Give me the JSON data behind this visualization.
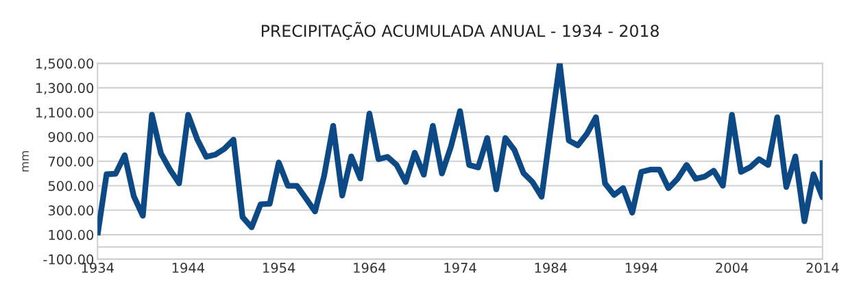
{
  "chart_data": {
    "type": "line",
    "title": "PRECIPITAÇÃO ACUMULADA ANUAL - 1934 - 2018",
    "ylabel": "mm",
    "x": [
      1934,
      1935,
      1936,
      1937,
      1938,
      1939,
      1940,
      1941,
      1942,
      1943,
      1944,
      1945,
      1946,
      1947,
      1948,
      1949,
      1950,
      1951,
      1952,
      1953,
      1954,
      1955,
      1956,
      1957,
      1958,
      1959,
      1960,
      1961,
      1962,
      1963,
      1964,
      1965,
      1966,
      1967,
      1968,
      1969,
      1970,
      1971,
      1972,
      1973,
      1974,
      1975,
      1976,
      1977,
      1978,
      1979,
      1980,
      1981,
      1982,
      1983,
      1984,
      1985,
      1986,
      1987,
      1988,
      1989,
      1990,
      1991,
      1992,
      1993,
      1994,
      1995,
      1996,
      1997,
      1998,
      1999,
      2000,
      2001,
      2002,
      2003,
      2004,
      2005,
      2006,
      2007,
      2008,
      2009,
      2010,
      2011,
      2012,
      2013,
      2014,
      2014
    ],
    "series": [
      {
        "color": "#0d4a85",
        "values": [
          95,
          594,
          598,
          750,
          415,
          255,
          1080,
          764,
          632,
          520,
          1080,
          880,
          736,
          755,
          802,
          877,
          245,
          160,
          349,
          353,
          690,
          500,
          500,
          396,
          290,
          580,
          990,
          420,
          740,
          560,
          1090,
          717,
          736,
          670,
          530,
          770,
          590,
          990,
          600,
          821,
          1110,
          670,
          650,
          890,
          470,
          890,
          792,
          604,
          530,
          410,
          960,
          1500,
          870,
          830,
          925,
          1060,
          519,
          425,
          481,
          280,
          613,
          632,
          632,
          480,
          557,
          670,
          557,
          575,
          623,
          500,
          1080,
          613,
          651,
          717,
          670,
          1060,
          490,
          740,
          210,
          594,
          406,
          708
        ]
      }
    ],
    "xlim": [
      1934,
      2014
    ],
    "xticks": [
      1934,
      1944,
      1954,
      1964,
      1974,
      1984,
      1994,
      2004,
      2014
    ],
    "ylim": [
      -100,
      1500
    ],
    "yticks": [
      {
        "value": -100,
        "label": "-100.00"
      },
      {
        "value": 100,
        "label": "100.00"
      },
      {
        "value": 300,
        "label": "300.00"
      },
      {
        "value": 500,
        "label": "500.00"
      },
      {
        "value": 700,
        "label": "700.00"
      },
      {
        "value": 900,
        "label": "900.00"
      },
      {
        "value": 1100,
        "label": "1,100.00"
      },
      {
        "value": 1300,
        "label": "1,300.00"
      },
      {
        "value": 1500,
        "label": "1,500.00"
      }
    ],
    "grid": "y",
    "line_style": "solid",
    "marker": "none",
    "ref_lines": [
      {
        "axis": "y",
        "value": 0,
        "color": "#d0d0d0"
      }
    ]
  }
}
